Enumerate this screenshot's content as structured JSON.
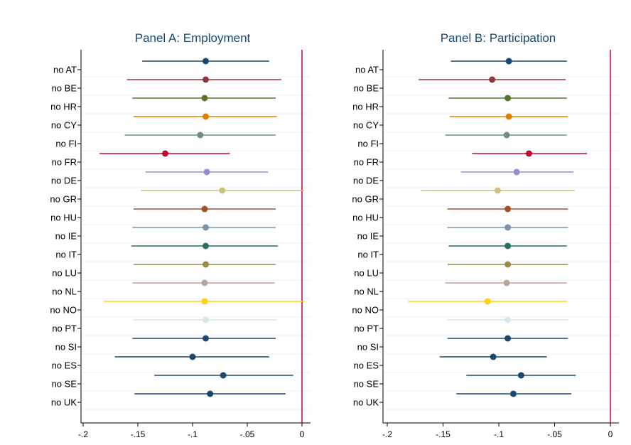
{
  "chart_data": [
    {
      "type": "scatter",
      "title": "Panel A: Employment",
      "xlim": [
        -0.2,
        0
      ],
      "xticks": [
        -0.2,
        -0.15,
        -0.1,
        -0.05,
        0
      ],
      "xtick_labels": [
        "-.2",
        "-.15",
        "-.1",
        "-.05",
        "0"
      ],
      "reference_line": 0,
      "grid": true,
      "categories": [
        "no AT",
        "no BE",
        "no HR",
        "no CY",
        "no FI",
        "no FR",
        "no DE",
        "no GR",
        "no HU",
        "no IE",
        "no IT",
        "no LU",
        "no NL",
        "no NO",
        "no PT",
        "no SI",
        "no ES",
        "no SE",
        "no UK"
      ],
      "estimates": [
        -0.088,
        -0.088,
        -0.089,
        -0.088,
        -0.093,
        -0.125,
        -0.087,
        -0.073,
        -0.089,
        -0.088,
        -0.088,
        -0.088,
        -0.089,
        -0.089,
        -0.088,
        -0.088,
        -0.1,
        -0.072,
        -0.084
      ],
      "ci_low": [
        -0.146,
        -0.16,
        -0.155,
        -0.154,
        -0.162,
        -0.185,
        -0.143,
        -0.147,
        -0.154,
        -0.155,
        -0.156,
        -0.154,
        -0.155,
        -0.181,
        -0.154,
        -0.155,
        -0.171,
        -0.135,
        -0.153
      ],
      "ci_high": [
        -0.03,
        -0.019,
        -0.024,
        -0.023,
        -0.024,
        -0.066,
        -0.031,
        0.002,
        -0.024,
        -0.024,
        -0.022,
        -0.024,
        -0.025,
        0.002,
        -0.023,
        -0.024,
        -0.03,
        -0.008,
        -0.015
      ]
    },
    {
      "type": "scatter",
      "title": "Panel B: Participation",
      "xlim": [
        -0.2,
        0
      ],
      "xticks": [
        -0.2,
        -0.15,
        -0.1,
        -0.05,
        0
      ],
      "xtick_labels": [
        "-.2",
        "-.15",
        "-.1",
        "-.05",
        "0"
      ],
      "reference_line": 0,
      "grid": true,
      "categories": [
        "no AT",
        "no BE",
        "no HR",
        "no CY",
        "no FI",
        "no FR",
        "no DE",
        "no GR",
        "no HU",
        "no IE",
        "no IT",
        "no LU",
        "no NL",
        "no NO",
        "no PT",
        "no SI",
        "no ES",
        "no SE",
        "no UK"
      ],
      "estimates": [
        -0.091,
        -0.106,
        -0.092,
        -0.091,
        -0.093,
        -0.073,
        -0.084,
        -0.101,
        -0.092,
        -0.092,
        -0.092,
        -0.092,
        -0.093,
        -0.11,
        -0.092,
        -0.092,
        -0.105,
        -0.08,
        -0.087
      ],
      "ci_low": [
        -0.143,
        -0.172,
        -0.145,
        -0.144,
        -0.148,
        -0.124,
        -0.134,
        -0.17,
        -0.146,
        -0.146,
        -0.145,
        -0.146,
        -0.148,
        -0.181,
        -0.146,
        -0.146,
        -0.153,
        -0.129,
        -0.138
      ],
      "ci_high": [
        -0.039,
        -0.04,
        -0.039,
        -0.038,
        -0.039,
        -0.021,
        -0.033,
        -0.032,
        -0.038,
        -0.038,
        -0.039,
        -0.038,
        -0.039,
        -0.039,
        -0.038,
        -0.038,
        -0.057,
        -0.031,
        -0.035
      ]
    }
  ],
  "series_colors": [
    "#1a476f",
    "#90353b",
    "#55752f",
    "#e37e00",
    "#6e8e84",
    "#c10534",
    "#938dd2",
    "#cac27e",
    "#a0522d",
    "#7b92a8",
    "#2d6d66",
    "#9c8847",
    "#bfa19c",
    "#ffd200",
    "#d9e6eb",
    "#1a476f",
    "#1a476f",
    "#1a476f",
    "#1a476f"
  ],
  "reference_line_color": "#c10534",
  "gridline_color": "#eaf2f3"
}
